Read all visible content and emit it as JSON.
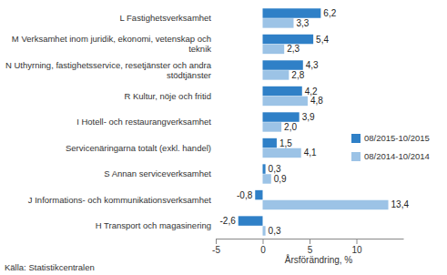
{
  "chart_data": {
    "type": "bar",
    "orientation": "horizontal",
    "categories": [
      "L Fastighetsverksamhet",
      "M Verksamhet inom juridik, ekonomi, vetenskap och teknik",
      "N Uthyrning, fastighetsservice, resetjänster och andra stödtjänster",
      "R Kultur, nöje och fritid",
      "I Hotell- och restaurangverksamhet",
      "Servicenäringarna totalt (exkl. handel)",
      "S Annan serviceverksamhet",
      "J Informations- och kommunikationsverksamhet",
      "H Transport och magasinering"
    ],
    "series": [
      {
        "name": "08/2015-10/2015",
        "color": "#2f80c7",
        "values": [
          6.2,
          5.4,
          4.3,
          4.2,
          3.9,
          1.5,
          0.3,
          -0.8,
          -2.6
        ],
        "value_labels": [
          "6,2",
          "5,4",
          "4,3",
          "4,2",
          "3,9",
          "1,5",
          "0,3",
          "-0,8",
          "-2,6"
        ]
      },
      {
        "name": "08/2014-10/2014",
        "color": "#9cc3e6",
        "values": [
          3.3,
          2.3,
          2.8,
          4.8,
          2.0,
          4.1,
          0.9,
          13.4,
          0.3
        ],
        "value_labels": [
          "3,3",
          "2,3",
          "2,8",
          "4,8",
          "2,0",
          "4,1",
          "0,9",
          "13,4",
          "0,3"
        ]
      }
    ],
    "x_label": "Årsförändring, %",
    "source": "Källa: Statistikcentralen",
    "xlim": [
      -5,
      15
    ],
    "xticks": [
      -5,
      0,
      5,
      10
    ],
    "grid": false,
    "legend": "right",
    "data_labels": true
  }
}
